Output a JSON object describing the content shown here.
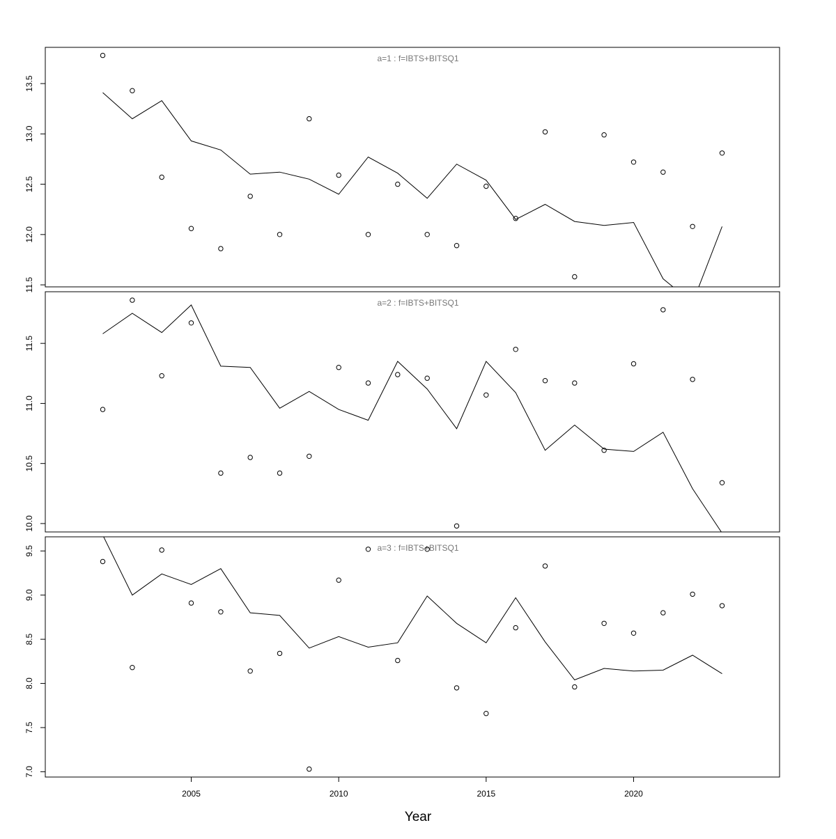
{
  "x_axis": {
    "label": "Year",
    "ticks": [
      2005,
      2010,
      2015,
      2020
    ],
    "range": [
      2000.05,
      2024.95
    ]
  },
  "chart_data": [
    {
      "type": "line",
      "title": "a=1  :  f=IBTS+BITSQ1",
      "xlabel": "",
      "ylabel": "",
      "ylim": [
        11.48,
        13.86
      ],
      "yticks": [
        "11.5",
        "12.0",
        "12.5",
        "13.0",
        "13.5"
      ],
      "x": [
        2002,
        2003,
        2004,
        2005,
        2006,
        2007,
        2008,
        2009,
        2010,
        2011,
        2012,
        2013,
        2014,
        2015,
        2016,
        2017,
        2018,
        2019,
        2020,
        2021,
        2022,
        2023
      ],
      "series": [
        {
          "style": "line",
          "values": [
            13.41,
            13.15,
            13.33,
            12.93,
            12.84,
            12.6,
            12.62,
            12.55,
            12.4,
            12.77,
            12.61,
            12.36,
            12.7,
            12.54,
            12.15,
            12.3,
            12.13,
            12.09,
            12.12,
            11.56,
            11.32,
            12.08
          ]
        },
        {
          "style": "points",
          "values": [
            13.78,
            13.43,
            12.57,
            12.06,
            11.86,
            12.38,
            12.0,
            13.15,
            12.59,
            12.0,
            12.5,
            12.0,
            11.89,
            12.48,
            12.16,
            13.02,
            11.58,
            12.99,
            12.72,
            12.62,
            12.08,
            12.81
          ]
        }
      ]
    },
    {
      "type": "line",
      "title": "a=2  :  f=IBTS+BITSQ1",
      "xlabel": "",
      "ylabel": "",
      "ylim": [
        9.93,
        11.93
      ],
      "yticks": [
        "10.0",
        "10.5",
        "11.0",
        "11.5"
      ],
      "x": [
        2002,
        2003,
        2004,
        2005,
        2006,
        2007,
        2008,
        2009,
        2010,
        2011,
        2012,
        2013,
        2014,
        2015,
        2016,
        2017,
        2018,
        2019,
        2020,
        2021,
        2022,
        2023
      ],
      "series": [
        {
          "style": "line",
          "values": [
            11.58,
            11.75,
            11.59,
            11.82,
            11.31,
            11.3,
            10.96,
            11.1,
            10.95,
            10.86,
            11.35,
            11.12,
            10.79,
            11.35,
            11.09,
            10.61,
            10.82,
            10.62,
            10.6,
            10.76,
            10.29,
            9.92
          ]
        },
        {
          "style": "points",
          "values": [
            10.95,
            11.86,
            11.23,
            11.67,
            10.42,
            10.55,
            10.42,
            10.56,
            11.3,
            11.17,
            11.24,
            11.21,
            9.98,
            11.07,
            11.45,
            11.19,
            11.17,
            10.61,
            11.33,
            11.78,
            11.2,
            10.34
          ]
        }
      ]
    },
    {
      "type": "line",
      "title": "a=3  :  f=IBTS+BITSQ1",
      "xlabel": "",
      "ylabel": "",
      "ylim": [
        6.94,
        9.66
      ],
      "yticks": [
        "7.0",
        "7.5",
        "8.0",
        "8.5",
        "9.0",
        "9.5"
      ],
      "x": [
        2002,
        2003,
        2004,
        2005,
        2006,
        2007,
        2008,
        2009,
        2010,
        2011,
        2012,
        2013,
        2014,
        2015,
        2016,
        2017,
        2018,
        2019,
        2020,
        2021,
        2022,
        2023
      ],
      "series": [
        {
          "style": "line",
          "values": [
            9.68,
            9.0,
            9.24,
            9.12,
            9.3,
            8.8,
            8.77,
            8.4,
            8.53,
            8.41,
            8.46,
            8.99,
            8.68,
            8.46,
            8.97,
            8.47,
            8.04,
            8.17,
            8.14,
            8.15,
            8.32,
            8.11
          ]
        },
        {
          "style": "points",
          "values": [
            9.38,
            8.18,
            9.51,
            8.91,
            8.81,
            8.14,
            8.34,
            7.03,
            9.17,
            9.52,
            8.26,
            9.52,
            7.95,
            7.66,
            8.63,
            9.33,
            7.96,
            8.68,
            8.57,
            8.8,
            9.01,
            8.88
          ]
        }
      ]
    }
  ]
}
